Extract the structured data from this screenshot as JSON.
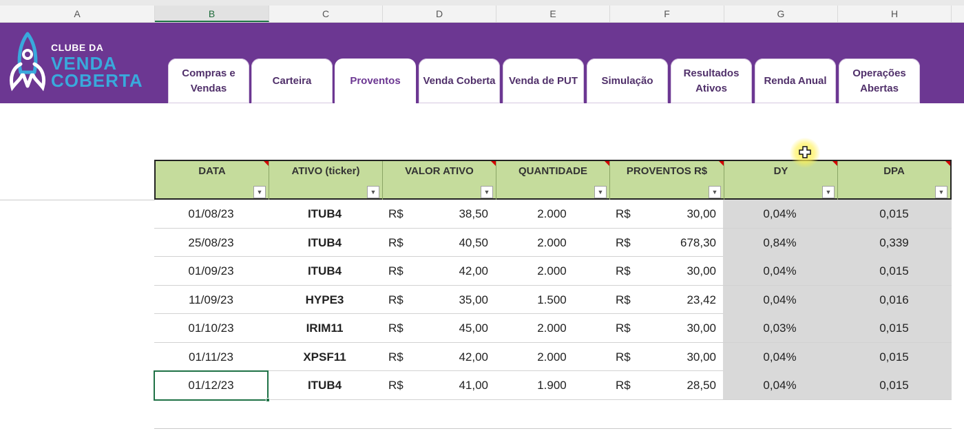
{
  "columns": [
    "A",
    "B",
    "C",
    "D",
    "E",
    "F",
    "G",
    "H"
  ],
  "active_column": "B",
  "logo": {
    "line1": "CLUBE DA",
    "line2": "VENDA",
    "line3": "COBERTA"
  },
  "tabs": [
    {
      "label": "Compras e Vendas",
      "active": false
    },
    {
      "label": "Carteira",
      "active": false
    },
    {
      "label": "Proventos",
      "active": true
    },
    {
      "label": "Venda Coberta",
      "active": false
    },
    {
      "label": "Venda de PUT",
      "active": false
    },
    {
      "label": "Simulação",
      "active": false
    },
    {
      "label": "Resultados Ativos",
      "active": false
    },
    {
      "label": "Renda Anual",
      "active": false
    },
    {
      "label": "Operações Abertas",
      "active": false
    }
  ],
  "table": {
    "headers": [
      "DATA",
      "ATIVO (ticker)",
      "VALOR ATIVO",
      "QUANTIDADE",
      "PROVENTOS R$",
      "DY",
      "DPA"
    ],
    "currency": "R$",
    "rows": [
      {
        "data": "01/08/23",
        "ativo": "ITUB4",
        "valor": "38,50",
        "quantidade": "2.000",
        "proventos": "30,00",
        "dy": "0,04%",
        "dpa": "0,015"
      },
      {
        "data": "25/08/23",
        "ativo": "ITUB4",
        "valor": "40,50",
        "quantidade": "2.000",
        "proventos": "678,30",
        "dy": "0,84%",
        "dpa": "0,339"
      },
      {
        "data": "01/09/23",
        "ativo": "ITUB4",
        "valor": "42,00",
        "quantidade": "2.000",
        "proventos": "30,00",
        "dy": "0,04%",
        "dpa": "0,015"
      },
      {
        "data": "11/09/23",
        "ativo": "HYPE3",
        "valor": "35,00",
        "quantidade": "1.500",
        "proventos": "23,42",
        "dy": "0,04%",
        "dpa": "0,016"
      },
      {
        "data": "01/10/23",
        "ativo": "IRIM11",
        "valor": "45,00",
        "quantidade": "2.000",
        "proventos": "30,00",
        "dy": "0,03%",
        "dpa": "0,015"
      },
      {
        "data": "01/11/23",
        "ativo": "XPSF11",
        "valor": "42,00",
        "quantidade": "2.000",
        "proventos": "30,00",
        "dy": "0,04%",
        "dpa": "0,015"
      },
      {
        "data": "01/12/23",
        "ativo": "ITUB4",
        "valor": "41,00",
        "quantidade": "1.900",
        "proventos": "28,50",
        "dy": "0,04%",
        "dpa": "0,015"
      }
    ],
    "selected_row": 6,
    "selected_column": "data"
  },
  "colors": {
    "banner": "#6c3792",
    "header_fill": "#c5dc9c",
    "selection": "#1e7145",
    "computed_fill": "#d9d9d9"
  }
}
